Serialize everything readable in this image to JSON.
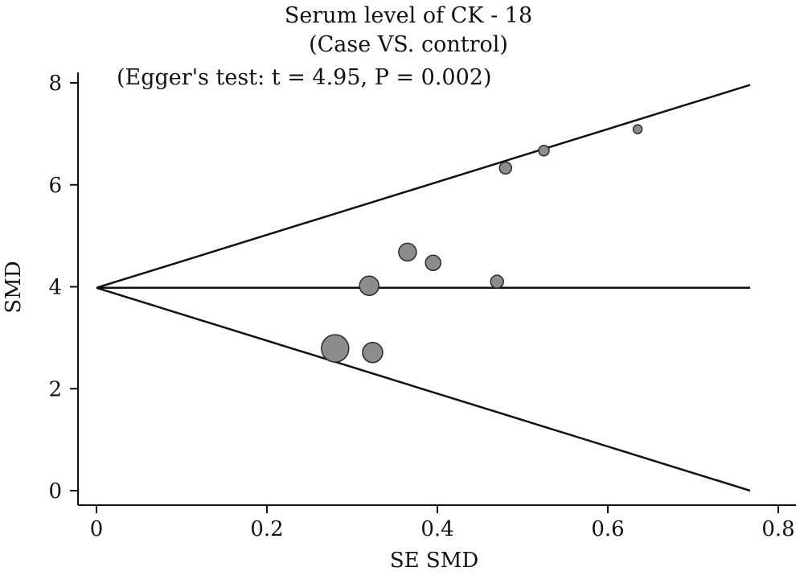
{
  "chart_data": {
    "type": "scatter",
    "title": "Serum level of CK - 18",
    "subtitle": "(Case VS. control)",
    "annotation": "(Egger's test: t = 4.95, P = 0.002)",
    "xlabel": "SE SMD",
    "ylabel": "SMD",
    "xlim": [
      0,
      0.8
    ],
    "ylim": [
      0,
      8
    ],
    "x_ticks": [
      0,
      0.2,
      0.4,
      0.6,
      0.8
    ],
    "x_tick_labels": [
      "0",
      "0.2",
      "0.4",
      "0.6",
      "0.8"
    ],
    "y_ticks": [
      0,
      2,
      4,
      6,
      8
    ],
    "y_tick_labels": [
      "0",
      "2",
      "4",
      "6",
      "8"
    ],
    "grid": false,
    "pooled_smd": 3.98,
    "funnel_se_max": 0.767,
    "funnel_upper_end": 7.96,
    "funnel_lower_end": 0.0,
    "marker_color": "#8c8c8c",
    "line_color": "#111111",
    "points": [
      {
        "x": 0.28,
        "y": 2.79,
        "size": 17
      },
      {
        "x": 0.32,
        "y": 4.02,
        "size": 12
      },
      {
        "x": 0.324,
        "y": 2.71,
        "size": 12.5
      },
      {
        "x": 0.365,
        "y": 4.68,
        "size": 11
      },
      {
        "x": 0.395,
        "y": 4.47,
        "size": 9.5
      },
      {
        "x": 0.47,
        "y": 4.1,
        "size": 8
      },
      {
        "x": 0.48,
        "y": 6.33,
        "size": 7.5
      },
      {
        "x": 0.525,
        "y": 6.67,
        "size": 6.5
      },
      {
        "x": 0.635,
        "y": 7.09,
        "size": 5.5
      }
    ]
  }
}
